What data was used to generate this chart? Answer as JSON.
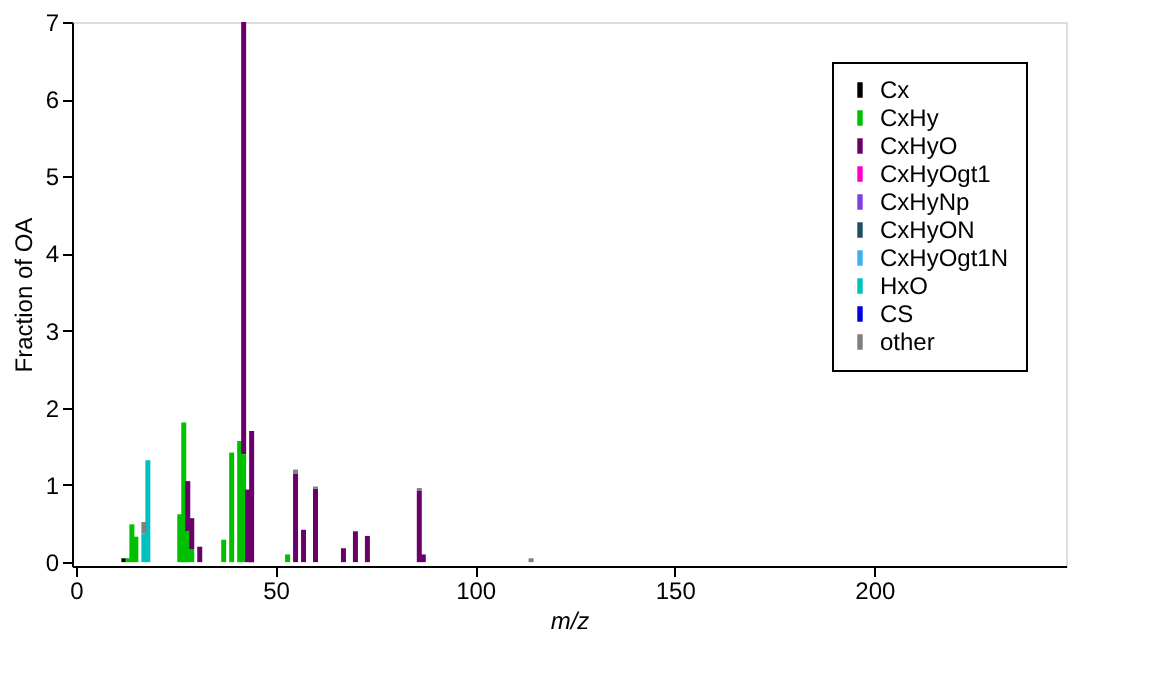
{
  "chart_data": {
    "type": "bar",
    "stacked": true,
    "xlabel": "m/z",
    "ylabel": "Fraction of OA",
    "x": [
      12,
      13,
      14,
      15,
      17,
      18,
      26,
      27,
      28,
      29,
      31,
      37,
      39,
      41,
      42,
      43,
      44,
      53,
      55,
      57,
      60,
      67,
      70,
      73,
      86,
      87,
      114
    ],
    "series": [
      {
        "name": "Cx",
        "color": "#000000",
        "values": [
          0.05,
          null,
          null,
          null,
          null,
          null,
          null,
          null,
          null,
          null,
          null,
          null,
          null,
          null,
          null,
          null,
          null,
          null,
          null,
          null,
          null,
          null,
          null,
          null,
          null,
          null,
          null
        ]
      },
      {
        "name": "CxHy",
        "color": "#00c000",
        "values": [
          null,
          0.05,
          0.49,
          0.33,
          null,
          null,
          0.62,
          1.81,
          0.4,
          0.17,
          null,
          0.29,
          1.42,
          1.57,
          1.4,
          null,
          null,
          0.1,
          null,
          null,
          null,
          null,
          null,
          null,
          null,
          null,
          null
        ]
      },
      {
        "name": "CxHyO",
        "color": "#6a006a",
        "values": [
          null,
          null,
          null,
          null,
          null,
          null,
          null,
          null,
          0.65,
          0.4,
          0.2,
          null,
          null,
          null,
          5.6,
          0.94,
          1.7,
          null,
          1.15,
          0.42,
          0.95,
          0.18,
          0.4,
          0.34,
          0.93,
          0.1,
          null
        ]
      },
      {
        "name": "CxHyOgt1",
        "color": "#ff00cc",
        "values": [
          null,
          null,
          null,
          null,
          null,
          null,
          null,
          null,
          null,
          null,
          null,
          null,
          null,
          null,
          null,
          null,
          null,
          null,
          null,
          null,
          null,
          null,
          null,
          null,
          null,
          null,
          null
        ]
      },
      {
        "name": "CxHyNp",
        "color": "#8040e0",
        "values": [
          null,
          null,
          null,
          null,
          null,
          null,
          null,
          null,
          null,
          null,
          null,
          null,
          null,
          null,
          null,
          null,
          null,
          null,
          null,
          null,
          null,
          null,
          null,
          null,
          null,
          null,
          null
        ]
      },
      {
        "name": "CxHyON",
        "color": "#205060",
        "values": [
          null,
          null,
          null,
          null,
          null,
          null,
          null,
          null,
          null,
          null,
          null,
          null,
          null,
          null,
          null,
          null,
          null,
          null,
          null,
          null,
          null,
          null,
          null,
          null,
          null,
          null,
          null
        ]
      },
      {
        "name": "CxHyOgt1N",
        "color": "#40b0f0",
        "values": [
          null,
          null,
          null,
          null,
          null,
          null,
          null,
          null,
          null,
          null,
          null,
          null,
          null,
          null,
          null,
          null,
          null,
          null,
          null,
          null,
          null,
          null,
          null,
          null,
          null,
          null,
          null
        ]
      },
      {
        "name": "HxO",
        "color": "#00c0c0",
        "values": [
          null,
          null,
          null,
          null,
          0.37,
          1.32,
          null,
          null,
          null,
          null,
          null,
          null,
          null,
          null,
          null,
          null,
          null,
          null,
          null,
          null,
          null,
          null,
          null,
          null,
          null,
          null,
          null
        ]
      },
      {
        "name": "CS",
        "color": "#0000e0",
        "values": [
          null,
          null,
          null,
          null,
          null,
          null,
          null,
          null,
          null,
          null,
          null,
          null,
          null,
          null,
          null,
          null,
          null,
          null,
          null,
          null,
          null,
          null,
          null,
          null,
          null,
          null,
          null
        ]
      },
      {
        "name": "other",
        "color": "#808080",
        "values": [
          null,
          null,
          null,
          null,
          0.15,
          null,
          null,
          null,
          null,
          null,
          null,
          null,
          null,
          null,
          null,
          null,
          null,
          null,
          0.05,
          null,
          0.03,
          null,
          null,
          null,
          0.03,
          null,
          0.05
        ]
      }
    ],
    "xlim": [
      -1,
      248
    ],
    "xticks": [
      0,
      50,
      100,
      150,
      200
    ],
    "ylim": [
      -0.05,
      7
    ],
    "yticks": [
      0,
      1,
      2,
      3,
      4,
      5,
      6,
      7
    ],
    "grid": false,
    "legend": "top right"
  }
}
